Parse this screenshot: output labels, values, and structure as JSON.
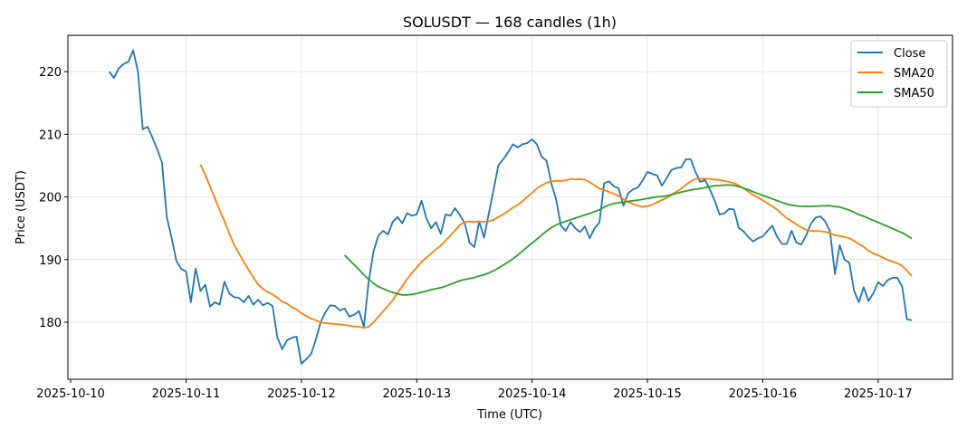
{
  "chart_data": {
    "type": "line",
    "title": "SOLUSDT — 168 candles (1h)",
    "xlabel": "Time (UTC)",
    "ylabel": "Price (USDT)",
    "start_time": "2025-10-10T08:00:00Z",
    "interval_hours": 1,
    "xlim_days_from_2025_10_10": [
      -0.024,
      7.645
    ],
    "ylim": [
      170.9,
      225.8
    ],
    "grid": true,
    "legend_position": "top-right",
    "x_ticks": [
      "2025-10-10",
      "2025-10-11",
      "2025-10-12",
      "2025-10-13",
      "2025-10-14",
      "2025-10-15",
      "2025-10-16",
      "2025-10-17"
    ],
    "y_ticks": [
      180,
      190,
      200,
      210,
      220
    ],
    "series": [
      {
        "name": "Close",
        "color": "#1f77b4",
        "values": [
          220.0,
          219.0,
          220.5,
          221.2,
          221.6,
          223.4,
          220.0,
          210.8,
          211.2,
          209.5,
          207.6,
          205.5,
          196.8,
          193.5,
          189.8,
          188.5,
          188.1,
          183.2,
          188.6,
          185.0,
          186.0,
          182.5,
          183.2,
          182.8,
          186.5,
          184.6,
          184.0,
          183.9,
          183.2,
          184.2,
          182.8,
          183.6,
          182.7,
          183.1,
          182.6,
          177.6,
          175.7,
          177.1,
          177.5,
          177.7,
          173.4,
          174.1,
          174.9,
          177.2,
          180.0,
          181.6,
          182.7,
          182.6,
          181.9,
          182.2,
          180.9,
          181.2,
          181.8,
          179.3,
          186.5,
          191.3,
          193.8,
          194.6,
          194.0,
          196.0,
          196.8,
          195.8,
          197.4,
          197.0,
          197.2,
          199.4,
          196.6,
          195.0,
          196.0,
          194.1,
          197.2,
          197.0,
          198.2,
          197.1,
          195.8,
          192.7,
          192.0,
          196.1,
          193.5,
          197.4,
          201.2,
          205.1,
          206.0,
          207.1,
          208.4,
          207.9,
          208.4,
          208.6,
          209.2,
          208.4,
          206.4,
          205.8,
          202.2,
          199.6,
          195.4,
          194.6,
          196.0,
          195.0,
          194.4,
          195.3,
          193.4,
          195.0,
          195.9,
          202.2,
          202.5,
          201.7,
          201.4,
          198.6,
          200.6,
          201.2,
          201.5,
          202.6,
          204.0,
          203.7,
          203.4,
          201.8,
          203.0,
          204.3,
          204.6,
          204.7,
          206.0,
          206.0,
          204.0,
          202.4,
          202.7,
          201.2,
          199.4,
          197.2,
          197.4,
          198.1,
          198.0,
          195.1,
          194.5,
          193.6,
          192.9,
          193.4,
          193.7,
          194.6,
          195.4,
          193.6,
          192.5,
          192.5,
          194.6,
          192.7,
          192.4,
          193.8,
          195.7,
          196.7,
          196.9,
          196.1,
          194.5,
          187.7,
          192.3,
          190.0,
          189.5,
          185.0,
          183.2,
          185.6,
          183.4,
          184.6,
          186.4,
          185.8,
          186.7,
          187.1,
          187.1,
          185.7,
          180.5,
          180.3
        ]
      },
      {
        "name": "SMA20",
        "color": "#ff7f0e",
        "window": 20
      },
      {
        "name": "SMA50",
        "color": "#2ca02c",
        "window": 50
      }
    ]
  }
}
